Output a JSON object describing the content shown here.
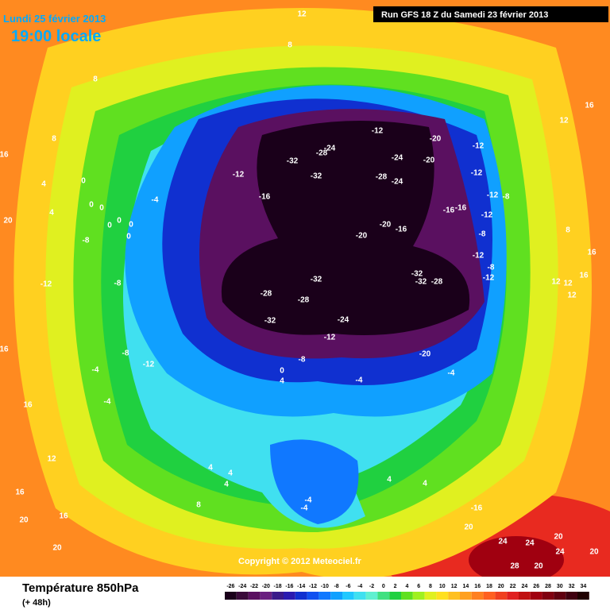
{
  "header": {
    "date": "Lundi 25 février 2013",
    "time": "19:00 locale",
    "run": "Run GFS 18 Z du Samedi 23 février 2013"
  },
  "footer": {
    "parameter": "Température 850hPa",
    "lead": "(+ 48h)",
    "copyright": "Copyright © 2012 Meteociel.fr"
  },
  "legend": {
    "ticks": [
      -26,
      -24,
      -22,
      -20,
      -18,
      -16,
      -14,
      -12,
      -10,
      -8,
      -6,
      -4,
      -2,
      0,
      2,
      4,
      6,
      8,
      10,
      12,
      14,
      16,
      18,
      20,
      22,
      24,
      26,
      28,
      30,
      32,
      34
    ],
    "colors": [
      "#1a001a",
      "#3a0a3a",
      "#5a1060",
      "#6a2080",
      "#3a1a8a",
      "#2a1ab0",
      "#1030d0",
      "#1050f0",
      "#1078ff",
      "#10a0ff",
      "#20c8ff",
      "#40e0f0",
      "#60f0d0",
      "#40e080",
      "#20d040",
      "#60e020",
      "#a0f020",
      "#e0f020",
      "#ffe020",
      "#ffc020",
      "#ffa020",
      "#ff8020",
      "#ff6020",
      "#f04020",
      "#e02020",
      "#c01010",
      "#a00010",
      "#800010",
      "#600010",
      "#400010",
      "#200000"
    ]
  },
  "contour_labels": [
    12,
    8,
    8,
    8,
    16,
    4,
    0,
    4,
    0,
    0,
    0,
    0,
    0,
    0,
    -8,
    -12,
    -8,
    20,
    16,
    16,
    -4,
    -8,
    -12,
    -4,
    -4,
    -12,
    -16,
    -32,
    -32,
    -28,
    -24,
    -12,
    -24,
    -28,
    -24,
    -20,
    -20,
    -12,
    -12,
    -12,
    -8,
    -16,
    -16,
    -12,
    -8,
    -12,
    -8,
    -12,
    -32,
    -32,
    -28,
    -32,
    -28,
    -28,
    -32,
    -24,
    -12,
    -8,
    0,
    4,
    -20,
    -20,
    -16,
    -20,
    -4,
    -4,
    4,
    4,
    4,
    8,
    -4,
    -4,
    4,
    4,
    -16,
    20,
    24,
    24,
    20,
    24,
    28,
    20,
    20,
    16,
    12,
    8,
    16,
    12,
    12,
    16,
    12,
    20,
    20,
    16,
    16,
    12
  ]
}
